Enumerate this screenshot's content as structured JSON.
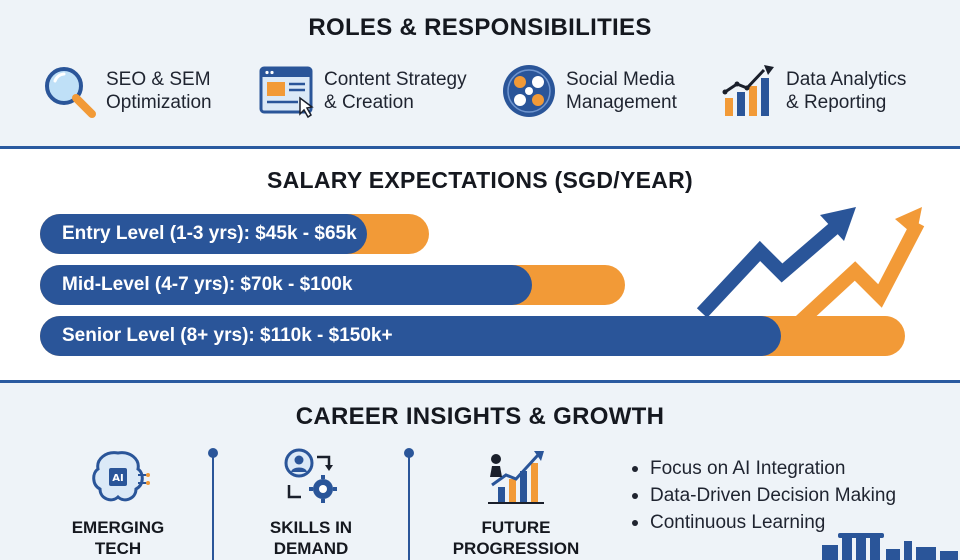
{
  "roles": {
    "title": "ROLES & RESPONSIBILITIES",
    "items": [
      {
        "icon": "magnifier-icon",
        "line1": "SEO & SEM",
        "line2": "Optimization"
      },
      {
        "icon": "content-browser-icon",
        "line1": "Content Strategy",
        "line2": "& Creation"
      },
      {
        "icon": "social-network-icon",
        "line1": "Social Media",
        "line2": "Management"
      },
      {
        "icon": "bar-chart-growth-icon",
        "line1": "Data Analytics",
        "line2": "& Reporting"
      }
    ]
  },
  "salary": {
    "title": "SALARY EXPECTATIONS (SGD/YEAR)",
    "bars": [
      {
        "label": "Entry Level (1-3 yrs): $45k - $65k",
        "low_k": 45,
        "high_k": 65
      },
      {
        "label": "Mid-Level (4-7 yrs): $70k - $100k",
        "low_k": 70,
        "high_k": 100
      },
      {
        "label": "Senior Level (8+ yrs): $110k - $150k+",
        "low_k": 110,
        "high_k": 150
      }
    ],
    "colors": {
      "range_low": "#2a5599",
      "range_high": "#f29a37"
    }
  },
  "career": {
    "title": "CAREER INSIGHTS & GROWTH",
    "items": [
      {
        "icon": "ai-brain-icon",
        "line1": "EMERGING",
        "line2": "TECH"
      },
      {
        "icon": "person-gear-icon",
        "line1": "SKILLS IN",
        "line2": "DEMAND"
      },
      {
        "icon": "growth-chart-person-icon",
        "line1": "FUTURE",
        "line2": "PROGRESSION"
      }
    ],
    "bullets": [
      "Focus on AI Integration",
      "Data-Driven Decision Making",
      "Continuous Learning"
    ]
  },
  "colors": {
    "brand_blue": "#2a5599",
    "accent_orange": "#f29a37",
    "background": "#eef3f8"
  }
}
